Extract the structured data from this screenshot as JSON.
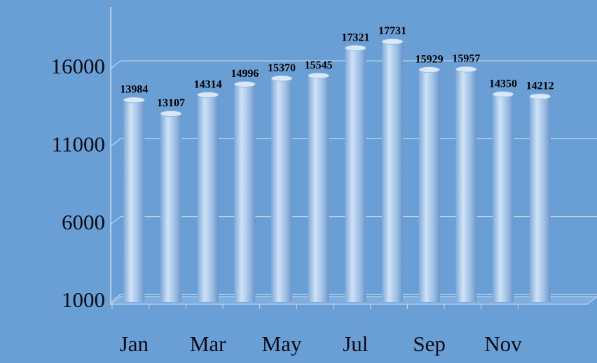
{
  "chart_data": {
    "type": "bar",
    "categories": [
      "Jan",
      null,
      "Mar",
      null,
      "May",
      null,
      "Jul",
      null,
      "Sep",
      null,
      "Nov",
      null
    ],
    "values": [
      13984,
      13107,
      14314,
      14996,
      15370,
      15545,
      17321,
      17731,
      15929,
      15957,
      14350,
      14212
    ],
    "color": "#9cc3ea",
    "ylim": [
      1000,
      20000
    ],
    "yticks": [
      1000,
      6000,
      11000,
      16000
    ],
    "grid": true
  }
}
